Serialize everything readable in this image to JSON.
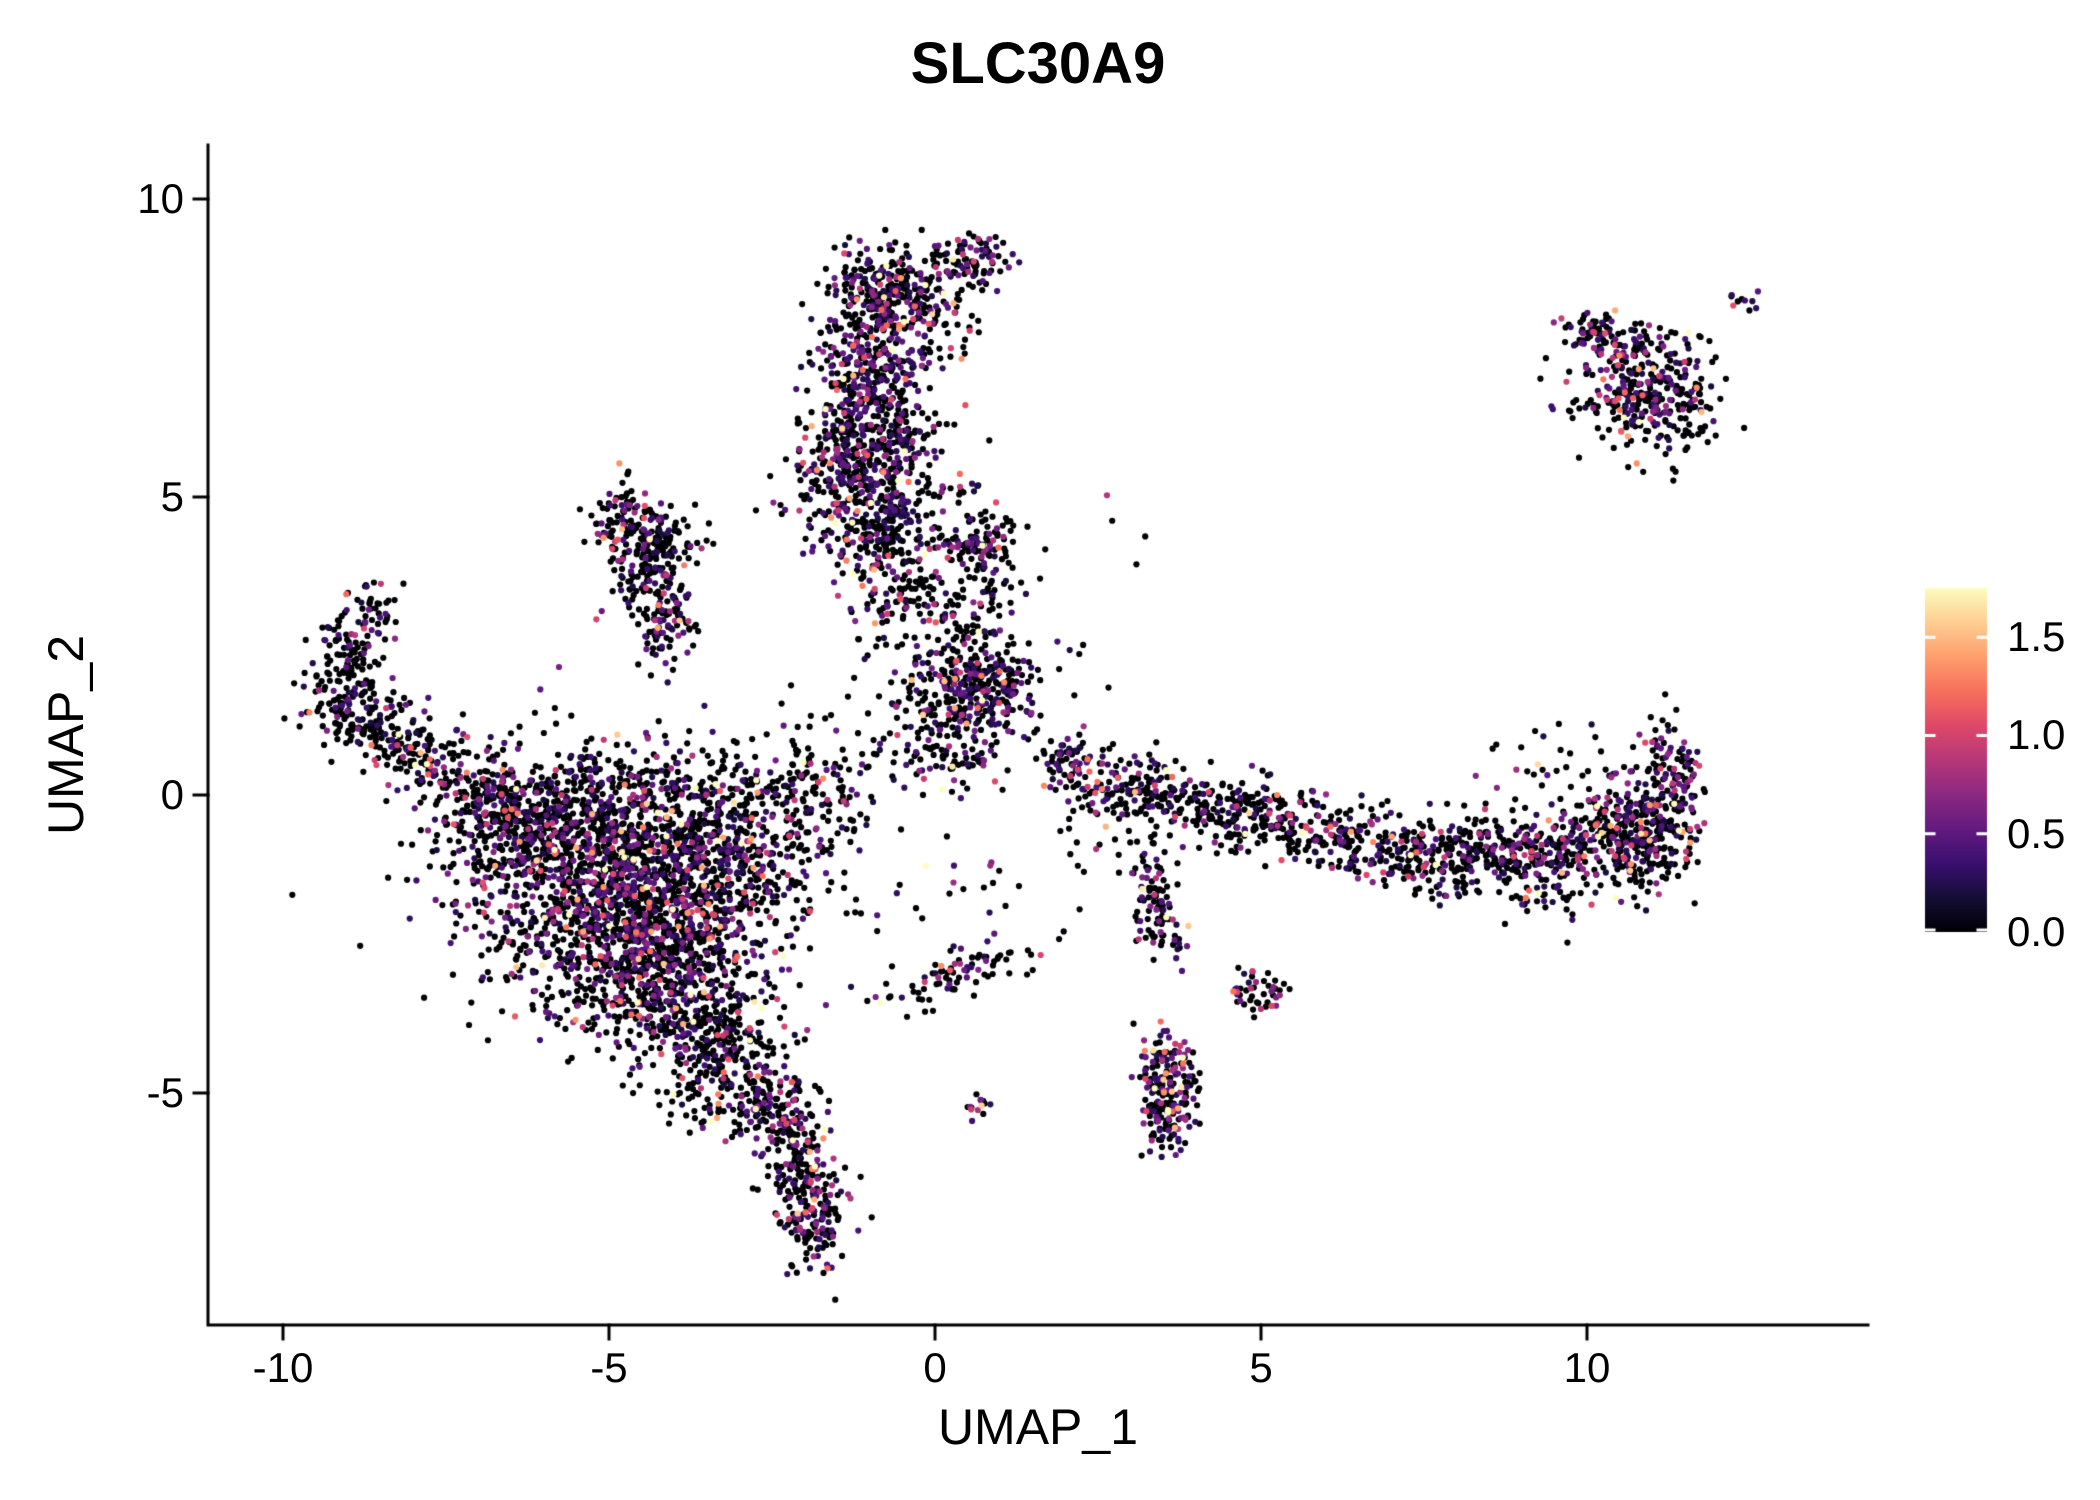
{
  "title": "SLC30A9",
  "axes": {
    "x_label": "UMAP_1",
    "y_label": "UMAP_2",
    "x_tick_labels": [
      "-10",
      "-5",
      "0",
      "5",
      "10"
    ],
    "x_tick_values": [
      -10,
      -5,
      0,
      5,
      10
    ],
    "y_tick_labels": [
      "10",
      "5",
      "0",
      "-5"
    ],
    "y_tick_values": [
      10,
      5,
      0,
      -5
    ]
  },
  "legend": {
    "tick_labels": [
      "0.0",
      "0.5",
      "1.0",
      "1.5"
    ],
    "tick_values": [
      0,
      0.5,
      1.0,
      1.5
    ]
  },
  "chart_data": {
    "type": "scatter",
    "title": "SLC30A9",
    "xlabel": "UMAP_1",
    "ylabel": "UMAP_2",
    "xlim": [
      -11.15,
      14.3
    ],
    "ylim": [
      -8.9,
      10.9
    ],
    "grid": false,
    "legend_position": "right",
    "color_scale": {
      "name": "magma",
      "vmin": 0,
      "vmax": 1.75,
      "stops": [
        [
          0.0,
          "#000004"
        ],
        [
          0.1,
          "#140e36"
        ],
        [
          0.2,
          "#3b0f70"
        ],
        [
          0.3,
          "#641a80"
        ],
        [
          0.4,
          "#8c2981"
        ],
        [
          0.5,
          "#b73779"
        ],
        [
          0.6,
          "#de4968"
        ],
        [
          0.7,
          "#f7705c"
        ],
        [
          0.8,
          "#fe9f6d"
        ],
        [
          0.9,
          "#fece91"
        ],
        [
          1.0,
          "#fcfdbf"
        ]
      ]
    },
    "expressed_fraction": 0.3,
    "point_radius": 3.1,
    "seed": 7,
    "clusters": [
      {
        "name": "top-blob-left",
        "x": -0.75,
        "y": 8.5,
        "sx": 0.42,
        "sy": 0.38,
        "n": 260,
        "ef": 0.4
      },
      {
        "name": "top-blob-right",
        "x": 0.55,
        "y": 8.95,
        "sx": 0.28,
        "sy": 0.22,
        "n": 90,
        "ef": 0.45
      },
      {
        "name": "top-scatter",
        "x": -0.1,
        "y": 7.9,
        "sx": 0.5,
        "sy": 0.35,
        "n": 60
      },
      {
        "name": "column-upper",
        "x": -1.0,
        "y": 6.9,
        "sx": 0.42,
        "sy": 0.75,
        "n": 420,
        "ef": 0.38
      },
      {
        "name": "column-lower",
        "x": -1.1,
        "y": 5.4,
        "sx": 0.55,
        "sy": 0.6,
        "n": 380,
        "ef": 0.38
      },
      {
        "name": "column-base",
        "x": -0.9,
        "y": 4.5,
        "sx": 0.5,
        "sy": 0.4,
        "n": 150
      },
      {
        "name": "column-bridge",
        "x": -0.7,
        "y": 3.4,
        "sx": 0.38,
        "sy": 0.6,
        "n": 110
      },
      {
        "name": "v-cluster-apex",
        "x": -4.75,
        "y": 4.7,
        "sx": 0.28,
        "sy": 0.3,
        "n": 90
      },
      {
        "name": "v-cluster-mid",
        "x": -4.45,
        "y": 3.8,
        "sx": 0.28,
        "sy": 0.42,
        "n": 120
      },
      {
        "name": "v-cluster-tip",
        "x": -4.15,
        "y": 3.0,
        "sx": 0.25,
        "sy": 0.4,
        "n": 95
      },
      {
        "name": "v-cluster-wing",
        "x": -4.05,
        "y": 4.3,
        "sx": 0.3,
        "sy": 0.22,
        "n": 65
      },
      {
        "name": "left-arm-tip",
        "x": -8.6,
        "y": 3.1,
        "sx": 0.2,
        "sy": 0.26,
        "n": 45
      },
      {
        "name": "left-arm-upper",
        "x": -9.0,
        "y": 2.4,
        "sx": 0.26,
        "sy": 0.34,
        "n": 80
      },
      {
        "name": "left-arm-elbow",
        "x": -9.05,
        "y": 1.6,
        "sx": 0.3,
        "sy": 0.3,
        "n": 90
      },
      {
        "name": "left-arm-mid",
        "x": -8.45,
        "y": 1.1,
        "sx": 0.36,
        "sy": 0.3,
        "n": 95
      },
      {
        "name": "left-arm-lower",
        "x": -7.65,
        "y": 0.55,
        "sx": 0.42,
        "sy": 0.3,
        "n": 95
      },
      {
        "name": "left-arm-end",
        "x": -6.85,
        "y": 0.05,
        "sx": 0.36,
        "sy": 0.3,
        "n": 75
      },
      {
        "name": "left-arm-trail",
        "x": -6.1,
        "y": -0.25,
        "sx": 0.4,
        "sy": 0.3,
        "n": 45
      },
      {
        "name": "mass-core",
        "x": -4.8,
        "y": -1.7,
        "sx": 1.1,
        "sy": 1.0,
        "n": 1500,
        "ef": 0.34
      },
      {
        "name": "mass-upper-left",
        "x": -6.3,
        "y": -0.6,
        "sx": 0.8,
        "sy": 0.5,
        "n": 320
      },
      {
        "name": "mass-top",
        "x": -4.5,
        "y": 0.0,
        "sx": 1.2,
        "sy": 0.42,
        "n": 300
      },
      {
        "name": "mass-right",
        "x": -3.2,
        "y": -1.1,
        "sx": 0.6,
        "sy": 0.8,
        "n": 300
      },
      {
        "name": "mass-lower",
        "x": -4.0,
        "y": -3.3,
        "sx": 0.7,
        "sy": 0.7,
        "n": 480,
        "ef": 0.36
      },
      {
        "name": "mass-bottom-tip",
        "x": -3.3,
        "y": -4.5,
        "sx": 0.45,
        "sy": 0.45,
        "n": 200
      },
      {
        "name": "mass-east-bridge",
        "x": -1.9,
        "y": -0.1,
        "sx": 0.55,
        "sy": 0.65,
        "n": 170
      },
      {
        "name": "tail-neck",
        "x": -2.6,
        "y": -5.2,
        "sx": 0.3,
        "sy": 0.4,
        "n": 110
      },
      {
        "name": "tail-mid",
        "x": -2.1,
        "y": -6.0,
        "sx": 0.3,
        "sy": 0.5,
        "n": 150,
        "ef": 0.4
      },
      {
        "name": "tail-end",
        "x": -1.85,
        "y": -7.1,
        "sx": 0.27,
        "sy": 0.45,
        "n": 140,
        "ef": 0.4
      },
      {
        "name": "center-blob",
        "x": 0.55,
        "y": 1.75,
        "sx": 0.5,
        "sy": 0.36,
        "n": 300,
        "ef": 0.35
      },
      {
        "name": "center-upper",
        "x": 0.4,
        "y": 2.7,
        "sx": 0.45,
        "sy": 0.4,
        "n": 90
      },
      {
        "name": "center-top-blob",
        "x": 0.65,
        "y": 4.15,
        "sx": 0.28,
        "sy": 0.3,
        "n": 95,
        "ef": 0.4
      },
      {
        "name": "center-top-sparse",
        "x": 0.3,
        "y": 3.5,
        "sx": 0.5,
        "sy": 0.3,
        "n": 40
      },
      {
        "name": "center-field",
        "x": 0.3,
        "y": 0.75,
        "sx": 0.75,
        "sy": 0.4,
        "n": 130
      },
      {
        "name": "center-dot",
        "x": 0.5,
        "y": 5.15,
        "sx": 0.12,
        "sy": 0.1,
        "n": 8,
        "ef": 0.6
      },
      {
        "name": "band-1",
        "x": 2.2,
        "y": 0.5,
        "sx": 0.35,
        "sy": 0.25,
        "n": 80
      },
      {
        "name": "band-2",
        "x": 3.1,
        "y": 0.1,
        "sx": 0.5,
        "sy": 0.28,
        "n": 120
      },
      {
        "name": "band-3",
        "x": 4.3,
        "y": -0.2,
        "sx": 0.6,
        "sy": 0.28,
        "n": 140,
        "rot": -0.12
      },
      {
        "name": "band-4",
        "x": 5.6,
        "y": -0.55,
        "sx": 0.65,
        "sy": 0.3,
        "n": 160,
        "rot": -0.12
      },
      {
        "name": "band-5",
        "x": 7.0,
        "y": -0.9,
        "sx": 0.65,
        "sy": 0.3,
        "n": 160,
        "rot": -0.1
      },
      {
        "name": "band-6",
        "x": 8.4,
        "y": -1.05,
        "sx": 0.65,
        "sy": 0.35,
        "n": 210
      },
      {
        "name": "band-7",
        "x": 9.7,
        "y": -1.0,
        "sx": 0.65,
        "sy": 0.4,
        "n": 260,
        "ef": 0.36
      },
      {
        "name": "band-8",
        "x": 10.85,
        "y": -0.6,
        "sx": 0.42,
        "sy": 0.5,
        "n": 260,
        "ef": 0.36
      },
      {
        "name": "band-upturn",
        "x": 11.3,
        "y": 0.25,
        "sx": 0.22,
        "sy": 0.5,
        "n": 120,
        "ef": 0.36
      },
      {
        "name": "band-above-sparse",
        "x": 9.6,
        "y": 0.5,
        "sx": 0.8,
        "sy": 0.3,
        "n": 30
      },
      {
        "name": "branch-chain",
        "x": 3.3,
        "y": -1.5,
        "sx": 0.18,
        "sy": 0.55,
        "n": 70
      },
      {
        "name": "branch-chain2",
        "x": 3.5,
        "y": -2.3,
        "sx": 0.15,
        "sy": 0.3,
        "n": 35
      },
      {
        "name": "branch-blob",
        "x": 3.55,
        "y": -5.0,
        "sx": 0.2,
        "sy": 0.5,
        "n": 220,
        "ef": 0.5
      },
      {
        "name": "branch-side",
        "x": 4.95,
        "y": -3.25,
        "sx": 0.25,
        "sy": 0.18,
        "n": 45
      },
      {
        "name": "small-line",
        "x": 0.3,
        "y": -3.0,
        "sx": 0.65,
        "sy": 0.2,
        "n": 85,
        "rot": 0.3
      },
      {
        "name": "tiny-pair",
        "x": 0.65,
        "y": -5.25,
        "sx": 0.1,
        "sy": 0.1,
        "n": 14,
        "ef": 0.6
      },
      {
        "name": "topright-core",
        "x": 10.8,
        "y": 6.9,
        "sx": 0.5,
        "sy": 0.5,
        "n": 310,
        "ef": 0.38
      },
      {
        "name": "topright-arm",
        "x": 10.05,
        "y": 7.75,
        "sx": 0.3,
        "sy": 0.16,
        "n": 50
      },
      {
        "name": "topright-east",
        "x": 11.55,
        "y": 6.5,
        "sx": 0.3,
        "sy": 0.4,
        "n": 60
      },
      {
        "name": "topright-dots",
        "x": 12.35,
        "y": 8.3,
        "sx": 0.12,
        "sy": 0.1,
        "n": 10,
        "ef": 0.5
      },
      {
        "name": "noise-upper",
        "x": 1.3,
        "y": 3.3,
        "sx": 1.0,
        "sy": 0.9,
        "n": 22
      },
      {
        "name": "noise-mid",
        "x": 2.3,
        "y": -0.9,
        "sx": 0.7,
        "sy": 0.5,
        "n": 18
      },
      {
        "name": "noise-low",
        "x": -0.3,
        "y": -1.6,
        "sx": 0.8,
        "sy": 0.6,
        "n": 22
      }
    ]
  }
}
